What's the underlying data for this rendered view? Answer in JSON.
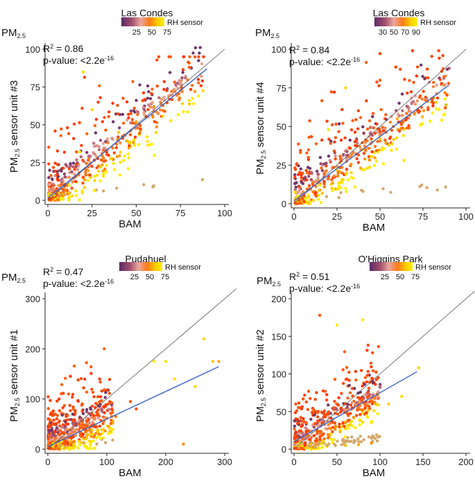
{
  "figure": {
    "colors": {
      "low": "#5a2a6a",
      "mid": "#e8a8a0",
      "high": "#ff3300",
      "yellow": "#ffe600",
      "tan": "#d2a86a",
      "fit": "#3a62c8",
      "identity": "#555555"
    }
  },
  "chart_data": [
    {
      "type": "scatter",
      "title": "Las Condes",
      "xlabel": "BAM",
      "ylabel_prefix": "PM",
      "ylabel_sub": "2.5",
      "ylabel_suffix": " sensor unit #3",
      "corner_label": "PM",
      "corner_sub": "2.5",
      "r2_label": "R",
      "r2_sup": "2",
      "r2_value": " = 0.86",
      "pvalue_label": "p-value: <2.2e",
      "pvalue_sup": "-16",
      "legend_title": "RH sensor",
      "legend_ticks": [
        "25",
        "50",
        "75"
      ],
      "xlim": [
        0,
        100
      ],
      "ylim": [
        0,
        100
      ],
      "xticks": [
        "0",
        "25",
        "50",
        "75",
        "100"
      ],
      "yticks": [
        "0",
        "25",
        "50",
        "75",
        "100"
      ],
      "fit": {
        "slope": 0.95,
        "intercept": 1.5,
        "x_end": 90
      },
      "ideal_end": 100,
      "cloud": {
        "slope": 0.95,
        "spread": 9,
        "xmax": 88,
        "outlier_frac": 0.22,
        "outlier_max": 95,
        "tan_frac": 0.03,
        "n": 520
      },
      "sample_points": [
        [
          5,
          4
        ],
        [
          12,
          10
        ],
        [
          18,
          32
        ],
        [
          20,
          85
        ],
        [
          25,
          60
        ],
        [
          30,
          22
        ],
        [
          40,
          45
        ],
        [
          50,
          52
        ],
        [
          60,
          62
        ],
        [
          70,
          72
        ],
        [
          80,
          88
        ],
        [
          85,
          80
        ]
      ]
    },
    {
      "type": "scatter",
      "title": "Las Condes",
      "xlabel": "BAM",
      "ylabel_prefix": "PM",
      "ylabel_sub": "2.5",
      "ylabel_suffix": " sensor unit #4",
      "corner_label": "PM",
      "corner_sub": "2.5",
      "r2_label": "R",
      "r2_sup": "2",
      "r2_value": " = 0.84",
      "pvalue_label": "p-value: <2.2e",
      "pvalue_sup": "-16",
      "legend_title": "RH sensor",
      "legend_ticks": [
        "30",
        "50",
        "70",
        "90"
      ],
      "xlim": [
        0,
        100
      ],
      "ylim": [
        0,
        100
      ],
      "xticks": [
        "0",
        "25",
        "50",
        "75",
        "100"
      ],
      "yticks": [
        "0",
        "25",
        "50",
        "75",
        "100"
      ],
      "fit": {
        "slope": 0.83,
        "intercept": 2,
        "x_end": 90
      },
      "ideal_end": 100,
      "cloud": {
        "slope": 0.85,
        "spread": 9,
        "xmax": 90,
        "outlier_frac": 0.24,
        "outlier_max": 99,
        "tan_frac": 0.03,
        "n": 520
      },
      "sample_points": [
        [
          5,
          3
        ],
        [
          15,
          12
        ],
        [
          20,
          48
        ],
        [
          25,
          22
        ],
        [
          30,
          75
        ],
        [
          40,
          35
        ],
        [
          50,
          42
        ],
        [
          60,
          55
        ],
        [
          70,
          58
        ],
        [
          80,
          68
        ],
        [
          88,
          62
        ]
      ]
    },
    {
      "type": "scatter",
      "title": "Pudahuel",
      "xlabel": "BAM",
      "ylabel_prefix": "PM",
      "ylabel_sub": "2.5",
      "ylabel_suffix": " sensor unit #1",
      "corner_label": "PM",
      "corner_sub": "2.5",
      "r2_label": "R",
      "r2_sup": "2",
      "r2_value": " = 0.47",
      "pvalue_label": "p-value: <2.2e",
      "pvalue_sup": "-16",
      "legend_title": "RH sensor",
      "legend_ticks": [
        "25",
        "50",
        "75"
      ],
      "xlim": [
        0,
        300
      ],
      "ylim": [
        0,
        300
      ],
      "xticks": [
        "0",
        "100",
        "200",
        "300"
      ],
      "yticks": [
        "0",
        "100",
        "200",
        "300"
      ],
      "fit": {
        "slope": 0.55,
        "intercept": 5,
        "x_end": 290
      },
      "ideal_end": 320,
      "cloud": {
        "slope": 0.6,
        "spread": 22,
        "xmax": 110,
        "outlier_frac": 0.3,
        "outlier_max": 200,
        "tan_frac": 0.03,
        "n": 560
      },
      "sample_points": [
        [
          150,
          80
        ],
        [
          180,
          175
        ],
        [
          200,
          175
        ],
        [
          215,
          140
        ],
        [
          250,
          125
        ],
        [
          265,
          220
        ],
        [
          280,
          175
        ],
        [
          290,
          175
        ],
        [
          230,
          10
        ],
        [
          115,
          65
        ],
        [
          140,
          95
        ]
      ]
    },
    {
      "type": "scatter",
      "title": "O'Higgins Park",
      "xlabel": "BAM",
      "ylabel_prefix": "PM",
      "ylabel_sub": "2.5",
      "ylabel_suffix": " sensor unit #2",
      "corner_label": "PM",
      "corner_sub": "2.5",
      "r2_label": "R",
      "r2_sup": "2",
      "r2_value": " = 0.51",
      "pvalue_label": "p-value: <2.2e",
      "pvalue_sup": "-16",
      "legend_title": "RH sensor",
      "legend_ticks": [
        "25",
        "50",
        "75"
      ],
      "xlim": [
        0,
        200
      ],
      "ylim": [
        0,
        200
      ],
      "xticks": [
        "0",
        "50",
        "100",
        "150",
        "200"
      ],
      "yticks": [
        "0",
        "50",
        "100",
        "150",
        "200"
      ],
      "fit": {
        "slope": 0.65,
        "intercept": 10,
        "x_end": 143
      },
      "ideal_end": 210,
      "cloud": {
        "slope": 0.7,
        "spread": 14,
        "xmax": 100,
        "outlier_frac": 0.3,
        "outlier_max": 175,
        "tan_frac": 0.12,
        "n": 560
      },
      "sample_points": [
        [
          30,
          178
        ],
        [
          50,
          165
        ],
        [
          80,
          172
        ],
        [
          125,
          70
        ],
        [
          145,
          108
        ],
        [
          110,
          60
        ],
        [
          60,
          5
        ],
        [
          75,
          6
        ],
        [
          90,
          8
        ]
      ]
    }
  ]
}
